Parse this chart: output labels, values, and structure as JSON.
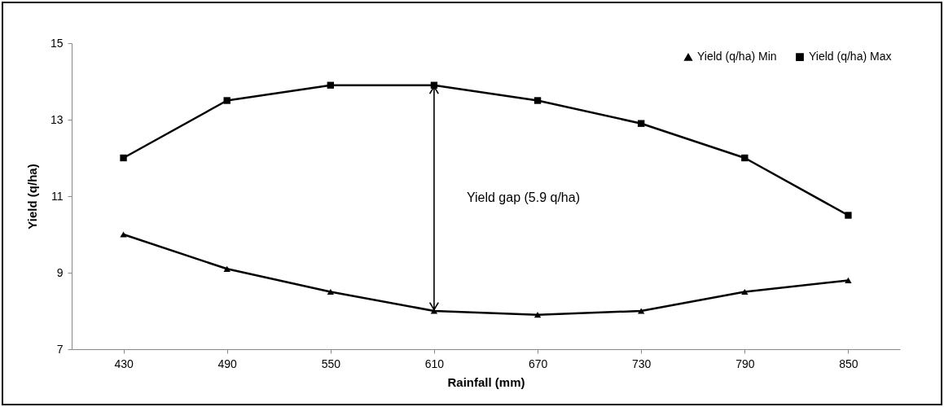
{
  "chart_data": {
    "type": "line",
    "xlabel": "Rainfall (mm)",
    "ylabel": "Yield (q/ha)",
    "categories": [
      "430",
      "490",
      "550",
      "610",
      "670",
      "730",
      "790",
      "850"
    ],
    "series": [
      {
        "name": "Yield (q/ha) Min",
        "color": "#000000",
        "marker": "triangle",
        "values": [
          10.0,
          9.1,
          8.5,
          8.0,
          7.9,
          8.0,
          8.5,
          8.8
        ]
      },
      {
        "name": "Yield (q/ha) Max",
        "color": "#000000",
        "marker": "square",
        "values": [
          12.0,
          13.5,
          13.9,
          13.9,
          13.5,
          12.9,
          12.0,
          10.5
        ]
      }
    ],
    "ylim": [
      7,
      15
    ],
    "yticks": [
      7,
      9,
      11,
      13,
      15
    ],
    "grid": false,
    "legend": "top right",
    "line_style": "solid",
    "annotations": [
      "Yield gap (5.9 q/ha)"
    ]
  }
}
